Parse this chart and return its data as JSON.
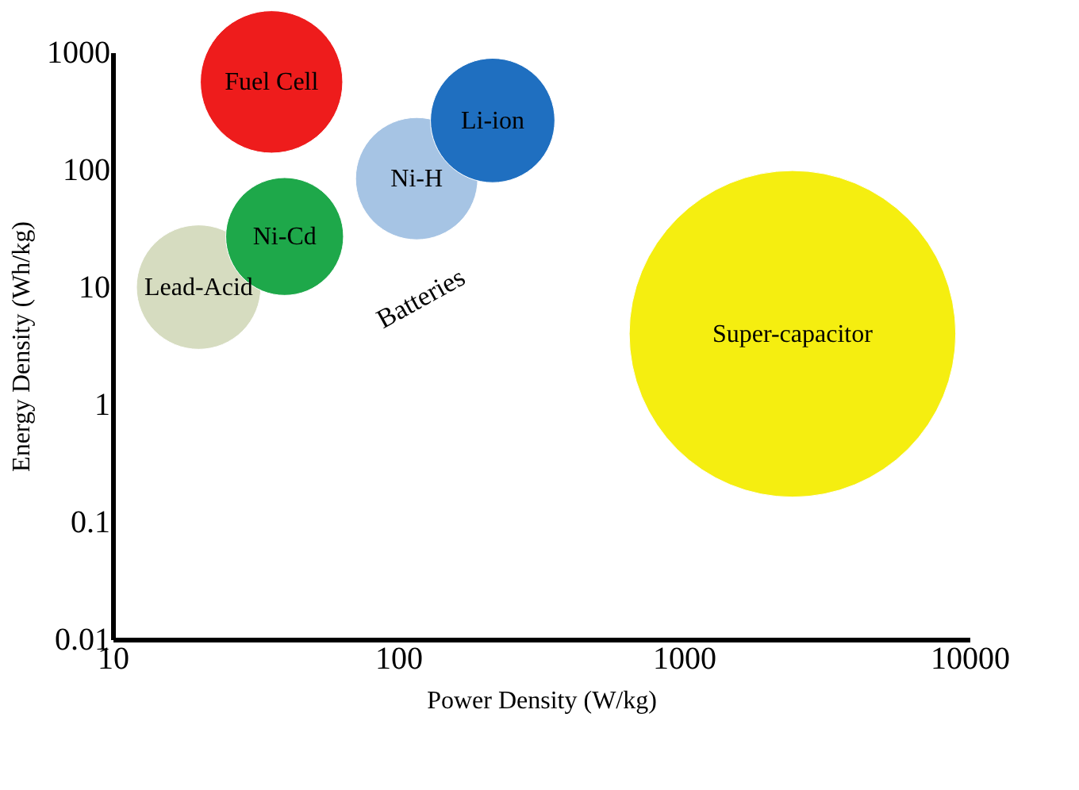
{
  "chart_data": {
    "type": "bubble",
    "xlabel": "Power Density (W/kg)",
    "ylabel": "Energy Density (Wh/kg)",
    "xlim": [
      10,
      10000
    ],
    "xticks": [
      10,
      100,
      1000,
      10000
    ],
    "ylim": [
      0.01,
      1000
    ],
    "yticks": [
      0.01,
      0.1,
      1,
      10,
      100,
      1000
    ],
    "log": "xy",
    "grid": false,
    "series": [
      {
        "name": "Fuel Cell",
        "color": "#ee1c1c",
        "x": [
          36
        ],
        "values": [
          560
        ],
        "sizes": [
          0.19
        ]
      },
      {
        "name": "Lead-Acid",
        "color": "#d6dcc0",
        "x": [
          20
        ],
        "values": [
          10
        ],
        "sizes": [
          0.145
        ]
      },
      {
        "name": "Ni-Cd",
        "color": "#1ea84a",
        "x": [
          40
        ],
        "values": [
          27
        ],
        "sizes": [
          0.13
        ]
      },
      {
        "name": "Ni-H",
        "color": "#a6c4e4",
        "x": [
          116
        ],
        "values": [
          84
        ],
        "sizes": [
          0.14
        ]
      },
      {
        "name": "Li-ion",
        "color": "#1f6fc0",
        "x": [
          214
        ],
        "values": [
          263
        ],
        "sizes": [
          0.145
        ]
      },
      {
        "name": "Super-capacitor",
        "color": "#f5ee10",
        "x": [
          2400
        ],
        "values": [
          4
        ],
        "sizes": [
          1
        ]
      }
    ],
    "annotations": [
      "Batteries"
    ]
  }
}
